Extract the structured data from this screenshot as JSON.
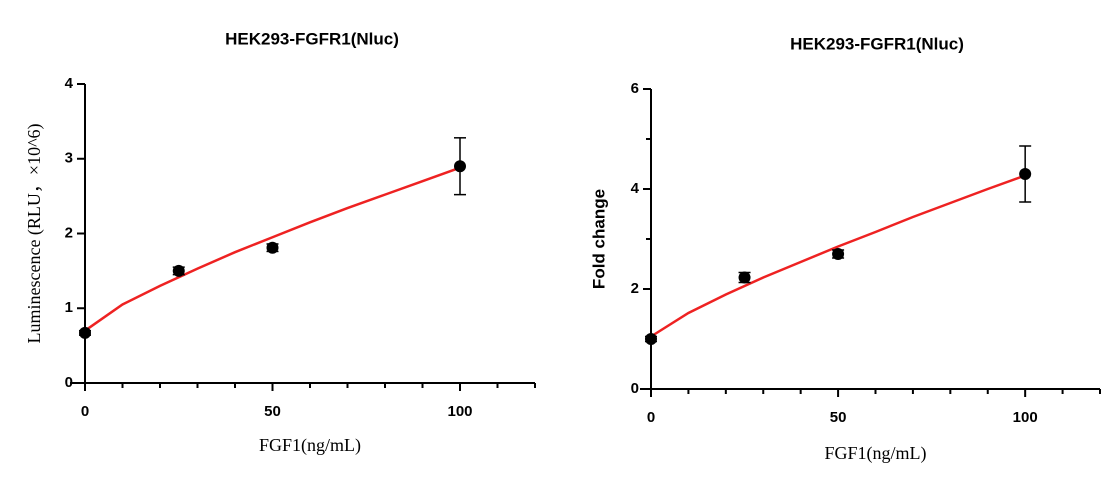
{
  "chart_data": [
    {
      "type": "scatter",
      "title": "HEK293-FGFR1(Nluc)",
      "x_label": "FGF1(ng/mL)",
      "y_label": "Luminescence (RLU，×10^6)",
      "x": [
        0,
        25,
        50,
        100
      ],
      "values": [
        0.67,
        1.5,
        1.81,
        2.9
      ],
      "errors": [
        0.03,
        0.05,
        0.05,
        0.38
      ],
      "color": "#000000",
      "fit": {
        "color": "#ee2222",
        "x": [
          0,
          10,
          20,
          30,
          40,
          50,
          60,
          70,
          80,
          90,
          100
        ],
        "values": [
          0.7,
          1.05,
          1.3,
          1.53,
          1.75,
          1.95,
          2.15,
          2.34,
          2.52,
          2.7,
          2.88
        ]
      },
      "xlim": [
        0,
        120
      ],
      "xticks": [
        0,
        50,
        100
      ],
      "xminorticks": [
        10,
        20,
        30,
        40,
        60,
        70,
        80,
        90,
        110,
        120
      ],
      "ylim": [
        0,
        4
      ],
      "yticks": [
        0,
        1,
        2,
        3,
        4
      ],
      "yminorticks": []
    },
    {
      "type": "scatter",
      "title": "HEK293-FGFR1(Nluc)",
      "x_label": "FGF1(ng/mL)",
      "y_label": "Fold change",
      "x": [
        0,
        25,
        50,
        100
      ],
      "values": [
        1.0,
        2.23,
        2.7,
        4.3
      ],
      "errors": [
        0.05,
        0.1,
        0.08,
        0.56
      ],
      "color": "#000000",
      "fit": {
        "color": "#ee2222",
        "x": [
          0,
          10,
          20,
          30,
          40,
          50,
          60,
          70,
          80,
          90,
          100
        ],
        "values": [
          1.05,
          1.52,
          1.89,
          2.23,
          2.54,
          2.85,
          3.14,
          3.44,
          3.72,
          4.0,
          4.27
        ]
      },
      "xlim": [
        0,
        120
      ],
      "xticks": [
        0,
        50,
        100
      ],
      "xminorticks": [
        10,
        20,
        30,
        40,
        60,
        70,
        80,
        90,
        110,
        120
      ],
      "ylim": [
        0,
        6
      ],
      "yticks": [
        0,
        2,
        4,
        6
      ],
      "yminorticks": [
        1,
        3,
        5
      ]
    }
  ]
}
